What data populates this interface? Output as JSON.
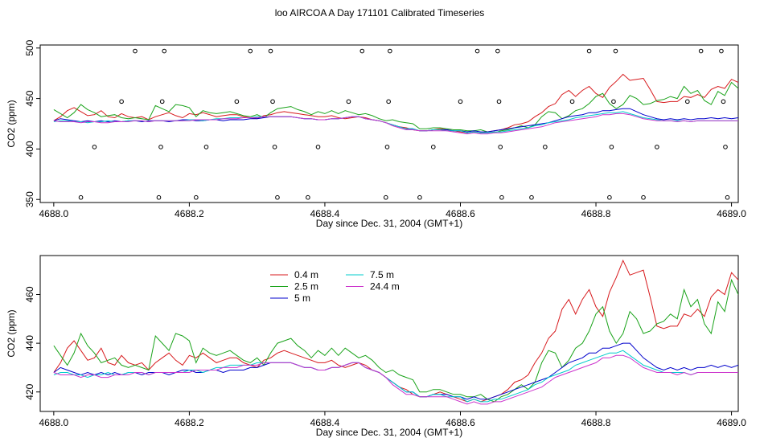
{
  "title": "loo AIRCOA A  Day 171101  Calibrated Timeseries",
  "colors": {
    "s04": "#d7191c",
    "s25": "#1aa31a",
    "s5": "#0000cc",
    "s75": "#00cccc",
    "s244": "#cc33cc",
    "axis": "#000000"
  },
  "chart_data": [
    {
      "type": "line",
      "title": "loo AIRCOA A  Day 171101  Calibrated Timeseries",
      "xlabel": "Day since Dec. 31, 2004 (GMT+1)",
      "ylabel": "CO2 (ppm)",
      "xlim": [
        4687.98,
        4689.01
      ],
      "ylim": [
        347,
        503
      ],
      "xticks": [
        "4688.0",
        "4688.2",
        "4688.4",
        "4688.6",
        "4688.8",
        "4689.0"
      ],
      "yticks": [
        "350",
        "400",
        "450",
        "500"
      ],
      "legend": "none",
      "grid": false,
      "x_start": 4688.0,
      "x_step": 0.01,
      "series": [
        {
          "values": [
            428,
            432,
            438,
            441,
            437,
            433,
            434,
            438,
            432,
            431,
            435,
            432,
            431,
            432,
            429,
            432,
            434,
            436,
            433,
            431,
            435,
            434,
            436,
            434,
            432,
            433,
            434,
            434,
            432,
            431,
            430,
            433,
            434,
            436,
            437,
            436,
            435,
            434,
            433,
            432,
            432,
            433,
            431,
            430,
            431,
            432,
            431,
            429,
            428,
            426,
            424,
            422,
            421,
            419,
            418,
            418,
            419,
            420,
            419,
            418,
            417,
            416,
            417,
            416,
            417,
            418,
            419,
            421,
            424,
            425,
            427,
            432,
            436,
            442,
            445,
            454,
            458,
            452,
            458,
            462,
            455,
            451,
            461,
            467,
            474,
            468,
            469,
            470,
            459,
            447,
            446,
            447,
            447,
            452,
            451,
            454,
            451,
            459,
            462,
            460,
            469,
            466
          ]
        },
        {
          "values": [
            439,
            435,
            431,
            436,
            444,
            439,
            436,
            432,
            433,
            434,
            431,
            430,
            431,
            430,
            429,
            443,
            440,
            437,
            444,
            443,
            441,
            432,
            438,
            436,
            435,
            436,
            437,
            435,
            433,
            432,
            434,
            431,
            436,
            440,
            441,
            442,
            439,
            437,
            434,
            437,
            435,
            438,
            435,
            438,
            436,
            434,
            435,
            433,
            430,
            428,
            429,
            427,
            426,
            425,
            420,
            420,
            421,
            421,
            420,
            419,
            419,
            418,
            418,
            419,
            417,
            416,
            418,
            419,
            421,
            423,
            421,
            424,
            432,
            437,
            436,
            430,
            433,
            438,
            440,
            445,
            452,
            455,
            445,
            440,
            444,
            453,
            450,
            444,
            445,
            448,
            449,
            452,
            450,
            462,
            455,
            458,
            448,
            444,
            457,
            453,
            466,
            460
          ]
        },
        {
          "values": [
            428,
            430,
            429,
            428,
            427,
            428,
            427,
            428,
            427,
            428,
            427,
            428,
            428,
            427,
            428,
            428,
            428,
            427,
            428,
            429,
            429,
            428,
            428,
            429,
            429,
            428,
            429,
            429,
            429,
            430,
            430,
            431,
            432,
            432,
            432,
            432,
            431,
            430,
            430,
            429,
            429,
            430,
            430,
            431,
            432,
            432,
            430,
            429,
            428,
            426,
            424,
            422,
            420,
            420,
            418,
            418,
            419,
            419,
            419,
            418,
            418,
            417,
            418,
            417,
            417,
            418,
            419,
            420,
            421,
            422,
            423,
            424,
            425,
            426,
            428,
            430,
            432,
            433,
            434,
            436,
            436,
            438,
            438,
            439,
            440,
            440,
            437,
            434,
            432,
            430,
            429,
            430,
            429,
            430,
            429,
            430,
            430,
            431,
            430,
            431,
            430,
            431
          ]
        },
        {
          "values": [
            427,
            428,
            428,
            427,
            427,
            426,
            427,
            427,
            428,
            427,
            427,
            428,
            428,
            428,
            427,
            428,
            428,
            428,
            428,
            428,
            429,
            429,
            428,
            429,
            430,
            430,
            431,
            431,
            431,
            431,
            432,
            432,
            432,
            432,
            432,
            432,
            431,
            430,
            430,
            429,
            429,
            430,
            430,
            431,
            432,
            432,
            430,
            429,
            428,
            426,
            424,
            422,
            420,
            420,
            418,
            418,
            419,
            419,
            418,
            418,
            418,
            416,
            417,
            416,
            416,
            417,
            417,
            418,
            419,
            420,
            421,
            423,
            424,
            426,
            427,
            428,
            429,
            431,
            432,
            433,
            434,
            435,
            436,
            436,
            437,
            435,
            433,
            431,
            430,
            429,
            428,
            428,
            428,
            428,
            427,
            428,
            428,
            428,
            428,
            428,
            428,
            428
          ]
        },
        {
          "values": [
            428,
            427,
            427,
            427,
            426,
            427,
            427,
            426,
            426,
            427,
            427,
            427,
            428,
            428,
            427,
            428,
            428,
            428,
            428,
            428,
            428,
            429,
            429,
            429,
            429,
            430,
            430,
            430,
            431,
            431,
            431,
            432,
            432,
            432,
            432,
            432,
            431,
            430,
            430,
            429,
            429,
            430,
            430,
            431,
            432,
            432,
            430,
            429,
            428,
            426,
            423,
            421,
            419,
            419,
            418,
            418,
            418,
            418,
            418,
            417,
            416,
            415,
            416,
            415,
            415,
            416,
            416,
            417,
            418,
            419,
            420,
            421,
            422,
            424,
            426,
            427,
            428,
            429,
            430,
            431,
            432,
            434,
            434,
            435,
            435,
            434,
            432,
            430,
            429,
            428,
            428,
            428,
            427,
            428,
            427,
            428,
            428,
            428,
            428,
            428,
            428,
            428
          ]
        }
      ],
      "status_points": [
        {
          "x": 4688.04,
          "y": 352
        },
        {
          "x": 4688.06,
          "y": 402
        },
        {
          "x": 4688.1,
          "y": 447
        },
        {
          "x": 4688.12,
          "y": 497
        },
        {
          "x": 4688.155,
          "y": 352
        },
        {
          "x": 4688.158,
          "y": 402
        },
        {
          "x": 4688.16,
          "y": 447
        },
        {
          "x": 4688.163,
          "y": 497
        },
        {
          "x": 4688.21,
          "y": 352
        },
        {
          "x": 4688.225,
          "y": 402
        },
        {
          "x": 4688.27,
          "y": 447
        },
        {
          "x": 4688.29,
          "y": 497
        },
        {
          "x": 4688.32,
          "y": 497
        },
        {
          "x": 4688.323,
          "y": 447
        },
        {
          "x": 4688.326,
          "y": 402
        },
        {
          "x": 4688.33,
          "y": 352
        },
        {
          "x": 4688.375,
          "y": 352
        },
        {
          "x": 4688.39,
          "y": 402
        },
        {
          "x": 4688.435,
          "y": 447
        },
        {
          "x": 4688.455,
          "y": 497
        },
        {
          "x": 4688.49,
          "y": 352
        },
        {
          "x": 4688.492,
          "y": 402
        },
        {
          "x": 4688.494,
          "y": 447
        },
        {
          "x": 4688.496,
          "y": 497
        },
        {
          "x": 4688.54,
          "y": 352
        },
        {
          "x": 4688.56,
          "y": 402
        },
        {
          "x": 4688.6,
          "y": 447
        },
        {
          "x": 4688.625,
          "y": 497
        },
        {
          "x": 4688.655,
          "y": 497
        },
        {
          "x": 4688.657,
          "y": 447
        },
        {
          "x": 4688.659,
          "y": 402
        },
        {
          "x": 4688.661,
          "y": 352
        },
        {
          "x": 4688.705,
          "y": 352
        },
        {
          "x": 4688.725,
          "y": 402
        },
        {
          "x": 4688.765,
          "y": 447
        },
        {
          "x": 4688.79,
          "y": 497
        },
        {
          "x": 4688.82,
          "y": 352
        },
        {
          "x": 4688.823,
          "y": 402
        },
        {
          "x": 4688.826,
          "y": 447
        },
        {
          "x": 4688.829,
          "y": 497
        },
        {
          "x": 4688.87,
          "y": 352
        },
        {
          "x": 4688.89,
          "y": 402
        },
        {
          "x": 4688.935,
          "y": 447
        },
        {
          "x": 4688.955,
          "y": 497
        },
        {
          "x": 4688.985,
          "y": 497
        },
        {
          "x": 4688.988,
          "y": 447
        },
        {
          "x": 4688.991,
          "y": 402
        },
        {
          "x": 4688.994,
          "y": 352
        }
      ]
    },
    {
      "type": "line",
      "title": "",
      "xlabel": "Day since Dec. 31, 2004 (GMT+1)",
      "ylabel": "CO2 (ppm)",
      "xlim": [
        4687.98,
        4689.01
      ],
      "ylim": [
        412,
        476
      ],
      "xticks": [
        "4688.0",
        "4688.2",
        "4688.4",
        "4688.6",
        "4688.8",
        "4689.0"
      ],
      "yticks": [
        "420",
        "440",
        "460"
      ],
      "legend": "top-left",
      "grid": false,
      "legend_entries": [
        {
          "label": "0.4 m",
          "color_key": "s04"
        },
        {
          "label": "2.5 m",
          "color_key": "s25"
        },
        {
          "label": "5 m",
          "color_key": "s5"
        },
        {
          "label": "7.5 m",
          "color_key": "s75"
        },
        {
          "label": "24.4 m",
          "color_key": "s244"
        }
      ]
    }
  ]
}
